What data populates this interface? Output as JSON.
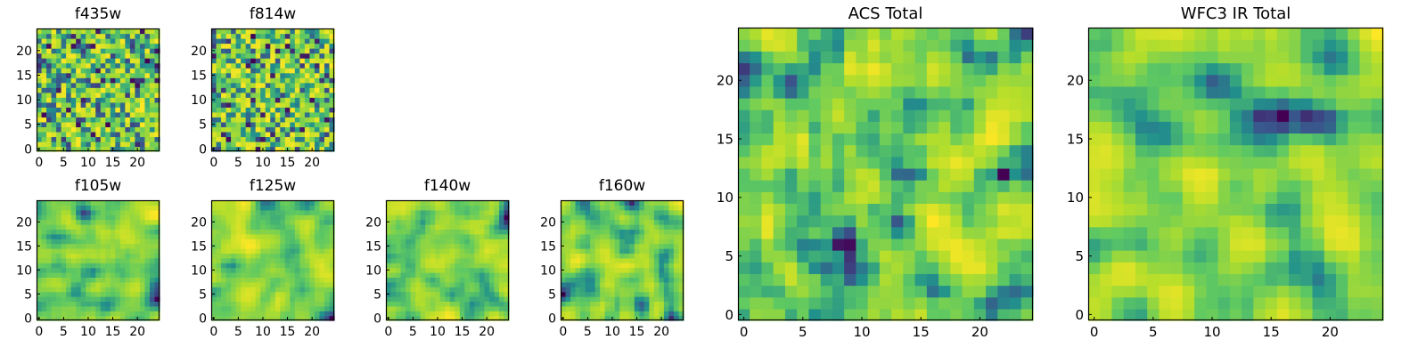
{
  "colors": {
    "colormap": "viridis",
    "cmap_stops": [
      "#440154",
      "#3b528b",
      "#21918c",
      "#5ec962",
      "#b5de2b",
      "#fde725"
    ]
  },
  "chart_data": [
    {
      "id": "f435w",
      "type": "heatmap",
      "title": "f435w",
      "x_range": [
        0,
        24
      ],
      "y_range": [
        0,
        24
      ],
      "xticks": [
        "0",
        "5",
        "10",
        "15",
        "20"
      ],
      "yticks": [
        "0",
        "5",
        "10",
        "15",
        "20"
      ],
      "y_origin": "bottom",
      "grid_size": [
        25,
        25
      ],
      "colormap": "viridis",
      "smoothness": 0.1,
      "brightness": 0.62,
      "seed": 11
    },
    {
      "id": "f814w",
      "type": "heatmap",
      "title": "f814w",
      "x_range": [
        0,
        24
      ],
      "y_range": [
        0,
        24
      ],
      "xticks": [
        "0",
        "5",
        "10",
        "15",
        "20"
      ],
      "yticks": [
        "0",
        "5",
        "10",
        "15",
        "20"
      ],
      "y_origin": "bottom",
      "grid_size": [
        25,
        25
      ],
      "colormap": "viridis",
      "smoothness": 0.1,
      "brightness": 0.62,
      "seed": 23
    },
    {
      "id": "f105w",
      "type": "heatmap",
      "title": "f105w",
      "x_range": [
        0,
        24
      ],
      "y_range": [
        0,
        24
      ],
      "xticks": [
        "0",
        "5",
        "10",
        "15",
        "20"
      ],
      "yticks": [
        "0",
        "5",
        "10",
        "15",
        "20"
      ],
      "y_origin": "bottom",
      "grid_size": [
        25,
        25
      ],
      "colormap": "viridis",
      "smoothness": 0.55,
      "brightness": 0.7,
      "seed": 37
    },
    {
      "id": "f125w",
      "type": "heatmap",
      "title": "f125w",
      "x_range": [
        0,
        24
      ],
      "y_range": [
        0,
        24
      ],
      "xticks": [
        "0",
        "5",
        "10",
        "15",
        "20"
      ],
      "yticks": [
        "0",
        "5",
        "10",
        "15",
        "20"
      ],
      "y_origin": "bottom",
      "grid_size": [
        25,
        25
      ],
      "colormap": "viridis",
      "smoothness": 0.55,
      "brightness": 0.7,
      "seed": 41
    },
    {
      "id": "f140w",
      "type": "heatmap",
      "title": "f140w",
      "x_range": [
        0,
        24
      ],
      "y_range": [
        0,
        24
      ],
      "xticks": [
        "0",
        "5",
        "10",
        "15",
        "20"
      ],
      "yticks": [
        "0",
        "5",
        "10",
        "15",
        "20"
      ],
      "y_origin": "bottom",
      "grid_size": [
        25,
        25
      ],
      "colormap": "viridis",
      "smoothness": 0.55,
      "brightness": 0.7,
      "seed": 53
    },
    {
      "id": "f160w",
      "type": "heatmap",
      "title": "f160w",
      "x_range": [
        0,
        24
      ],
      "y_range": [
        0,
        24
      ],
      "xticks": [
        "0",
        "5",
        "10",
        "15",
        "20"
      ],
      "yticks": [
        "0",
        "5",
        "10",
        "15",
        "20"
      ],
      "y_origin": "bottom",
      "grid_size": [
        25,
        25
      ],
      "colormap": "viridis",
      "smoothness": 0.55,
      "brightness": 0.68,
      "seed": 67
    },
    {
      "id": "acs-total",
      "type": "heatmap",
      "title": "ACS Total",
      "x_range": [
        0,
        24
      ],
      "y_range": [
        0,
        24
      ],
      "xticks": [
        "0",
        "5",
        "10",
        "15",
        "20"
      ],
      "yticks": [
        "0",
        "5",
        "10",
        "15",
        "20"
      ],
      "y_origin": "bottom",
      "grid_size": [
        25,
        25
      ],
      "colormap": "viridis",
      "smoothness": 0.3,
      "brightness": 0.64,
      "seed": 79
    },
    {
      "id": "wfc3-ir-total",
      "type": "heatmap",
      "title": "WFC3 IR Total",
      "x_range": [
        0,
        24
      ],
      "y_range": [
        0,
        24
      ],
      "xticks": [
        "0",
        "5",
        "10",
        "15",
        "20"
      ],
      "yticks": [
        "0",
        "5",
        "10",
        "15",
        "20"
      ],
      "y_origin": "bottom",
      "grid_size": [
        25,
        25
      ],
      "colormap": "viridis",
      "smoothness": 0.45,
      "brightness": 0.66,
      "seed": 97
    }
  ]
}
